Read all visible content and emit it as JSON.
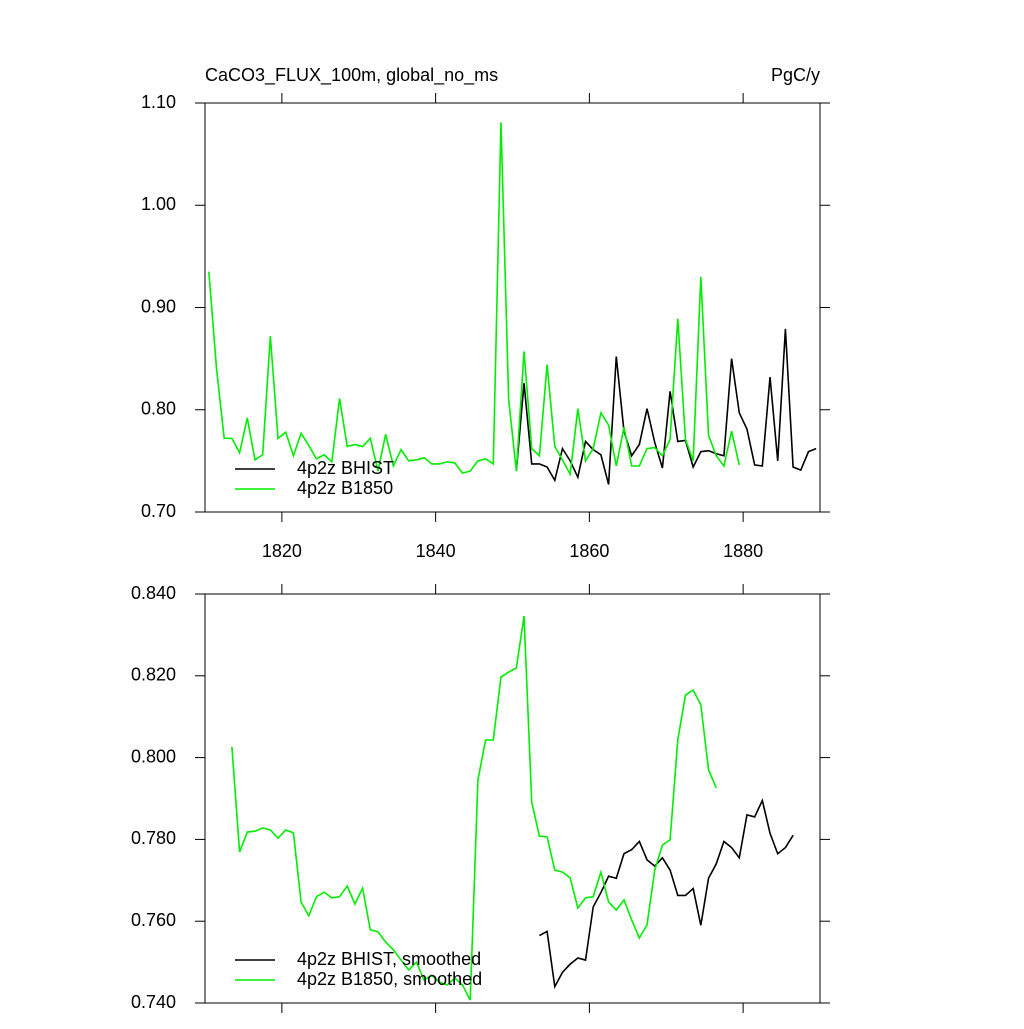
{
  "chart_data": [
    {
      "type": "line",
      "title": "CaCO3_FLUX_100m, global_no_ms",
      "right_title": "PgC/y",
      "xlim": [
        1810,
        1890
      ],
      "xticks": [
        1820,
        1840,
        1860,
        1880
      ],
      "ylim": [
        0.7,
        1.1
      ],
      "yticks": [
        {
          "value": 0.7,
          "label": "0.70"
        },
        {
          "value": 0.8,
          "label": "0.80"
        },
        {
          "value": 0.9,
          "label": "0.90"
        },
        {
          "value": 1.0,
          "label": "1.00"
        },
        {
          "value": 1.1,
          "label": "1.10"
        }
      ],
      "legend": "lower left",
      "series": [
        {
          "name": "4p2z BHIST",
          "color": "#000000",
          "x": [
            1850.5,
            1851.5,
            1852.5,
            1853.5,
            1854.5,
            1855.5,
            1856.5,
            1857.5,
            1858.5,
            1859.5,
            1860.5,
            1861.5,
            1862.5,
            1863.5,
            1864.5,
            1865.5,
            1866.5,
            1867.5,
            1868.5,
            1869.5,
            1870.5,
            1871.5,
            1872.5,
            1873.5,
            1874.5,
            1875.5,
            1876.5,
            1877.5,
            1878.5,
            1879.5,
            1880.5,
            1881.5,
            1882.5,
            1883.5,
            1884.5,
            1885.5,
            1886.5,
            1887.5,
            1888.5,
            1889.5
          ],
          "values": [
            0.74,
            0.826,
            0.747,
            0.747,
            0.744,
            0.731,
            0.762,
            0.75,
            0.734,
            0.769,
            0.761,
            0.756,
            0.727,
            0.852,
            0.779,
            0.755,
            0.766,
            0.801,
            0.768,
            0.743,
            0.818,
            0.769,
            0.77,
            0.744,
            0.759,
            0.76,
            0.757,
            0.755,
            0.85,
            0.797,
            0.781,
            0.746,
            0.745,
            0.832,
            0.75,
            0.879,
            0.744,
            0.741,
            0.759,
            0.762
          ]
        },
        {
          "name": "4p2z B1850",
          "color": "#00ee00",
          "x": [
            1810.5,
            1811.5,
            1812.5,
            1813.5,
            1814.5,
            1815.5,
            1816.5,
            1817.5,
            1818.5,
            1819.5,
            1820.5,
            1821.5,
            1822.5,
            1823.5,
            1824.5,
            1825.5,
            1826.5,
            1827.5,
            1828.5,
            1829.5,
            1830.5,
            1831.5,
            1832.5,
            1833.5,
            1834.5,
            1835.5,
            1836.5,
            1837.5,
            1838.5,
            1839.5,
            1840.5,
            1841.5,
            1842.5,
            1843.5,
            1844.5,
            1845.5,
            1846.5,
            1847.5,
            1848.5,
            1849.5,
            1850.5,
            1851.5,
            1852.5,
            1853.5,
            1854.5,
            1855.5,
            1856.5,
            1857.5,
            1858.5,
            1859.5,
            1860.5,
            1861.5,
            1862.5,
            1863.5,
            1864.5,
            1865.5,
            1866.5,
            1867.5,
            1868.5,
            1869.5,
            1870.5,
            1871.5,
            1872.5,
            1873.5,
            1874.5,
            1875.5,
            1876.5,
            1877.5,
            1878.5,
            1879.5
          ],
          "values": [
            0.935,
            0.84,
            0.772,
            0.772,
            0.758,
            0.792,
            0.751,
            0.756,
            0.872,
            0.772,
            0.778,
            0.755,
            0.777,
            0.765,
            0.752,
            0.756,
            0.749,
            0.811,
            0.764,
            0.766,
            0.764,
            0.772,
            0.74,
            0.776,
            0.745,
            0.761,
            0.75,
            0.751,
            0.753,
            0.747,
            0.747,
            0.749,
            0.748,
            0.738,
            0.74,
            0.75,
            0.752,
            0.747,
            1.081,
            0.81,
            0.74,
            0.857,
            0.762,
            0.755,
            0.844,
            0.764,
            0.751,
            0.737,
            0.801,
            0.75,
            0.762,
            0.797,
            0.785,
            0.745,
            0.783,
            0.745,
            0.745,
            0.762,
            0.763,
            0.755,
            0.771,
            0.889,
            0.771,
            0.75,
            0.93,
            0.775,
            0.755,
            0.745,
            0.779,
            0.746
          ]
        }
      ]
    },
    {
      "type": "line",
      "xlim": [
        1810,
        1890
      ],
      "ylim": [
        0.74,
        0.84
      ],
      "yticks": [
        {
          "value": 0.74,
          "label": "0.740"
        },
        {
          "value": 0.76,
          "label": "0.760"
        },
        {
          "value": 0.78,
          "label": "0.780"
        },
        {
          "value": 0.8,
          "label": "0.800"
        },
        {
          "value": 0.82,
          "label": "0.820"
        },
        {
          "value": 0.84,
          "label": "0.840"
        }
      ],
      "legend": "lower left",
      "series": [
        {
          "name": "4p2z BHIST, smoothed",
          "color": "#000000",
          "x": [
            1853.5,
            1854.5,
            1855.5,
            1856.5,
            1857.5,
            1858.5,
            1859.5,
            1860.5,
            1861.5,
            1862.5,
            1863.5,
            1864.5,
            1865.5,
            1866.5,
            1867.5,
            1868.5,
            1869.5,
            1870.5,
            1871.5,
            1872.5,
            1873.5,
            1874.5,
            1875.5,
            1876.5,
            1877.5,
            1878.5,
            1879.5,
            1880.5,
            1881.5,
            1882.5,
            1883.5,
            1884.5,
            1885.5,
            1886.5
          ],
          "values": [
            0.7565,
            0.7575,
            0.744,
            0.7475,
            0.7495,
            0.751,
            0.7505,
            0.7635,
            0.767,
            0.771,
            0.7705,
            0.7765,
            0.7775,
            0.7795,
            0.775,
            0.7735,
            0.7755,
            0.7725,
            0.7663,
            0.7663,
            0.768,
            0.759,
            0.7705,
            0.774,
            0.7795,
            0.778,
            0.7755,
            0.786,
            0.7855,
            0.7895,
            0.7815,
            0.7765,
            0.778,
            0.781
          ]
        },
        {
          "name": "4p2z B1850, smoothed",
          "color": "#00ee00",
          "x": [
            1813.5,
            1814.5,
            1815.5,
            1816.5,
            1817.5,
            1818.5,
            1819.5,
            1820.5,
            1821.5,
            1822.5,
            1823.5,
            1824.5,
            1825.5,
            1826.5,
            1827.5,
            1828.5,
            1829.5,
            1830.5,
            1831.5,
            1832.5,
            1833.5,
            1834.5,
            1835.5,
            1836.5,
            1837.5,
            1838.5,
            1839.5,
            1840.5,
            1841.5,
            1842.5,
            1843.5,
            1844.5,
            1845.5,
            1846.5,
            1847.5,
            1848.5,
            1849.5,
            1850.5,
            1851.5,
            1852.5,
            1853.5,
            1854.5,
            1855.5,
            1856.5,
            1857.5,
            1858.5,
            1859.5,
            1860.5,
            1861.5,
            1862.5,
            1863.5,
            1864.5,
            1865.5,
            1866.5,
            1867.5,
            1868.5,
            1869.5,
            1870.5,
            1871.5,
            1872.5,
            1873.5,
            1874.5,
            1875.5,
            1876.5
          ],
          "values": [
            0.8026,
            0.7769,
            0.7818,
            0.782,
            0.7828,
            0.7823,
            0.7803,
            0.7823,
            0.7816,
            0.7647,
            0.7613,
            0.766,
            0.7671,
            0.7657,
            0.766,
            0.7686,
            0.7642,
            0.7681,
            0.7579,
            0.7574,
            0.7549,
            0.753,
            0.7505,
            0.7481,
            0.75,
            0.7456,
            0.7468,
            0.7451,
            0.7444,
            0.7461,
            0.7444,
            0.7407,
            0.7945,
            0.8043,
            0.8043,
            0.8197,
            0.8209,
            0.8219,
            0.8346,
            0.7891,
            0.7808,
            0.7806,
            0.7725,
            0.772,
            0.7706,
            0.7632,
            0.7657,
            0.766,
            0.772,
            0.7647,
            0.7627,
            0.7652,
            0.7603,
            0.7559,
            0.7591,
            0.7725,
            0.7786,
            0.7799,
            0.8043,
            0.8153,
            0.8165,
            0.8129,
            0.797,
            0.7926
          ]
        }
      ]
    }
  ]
}
